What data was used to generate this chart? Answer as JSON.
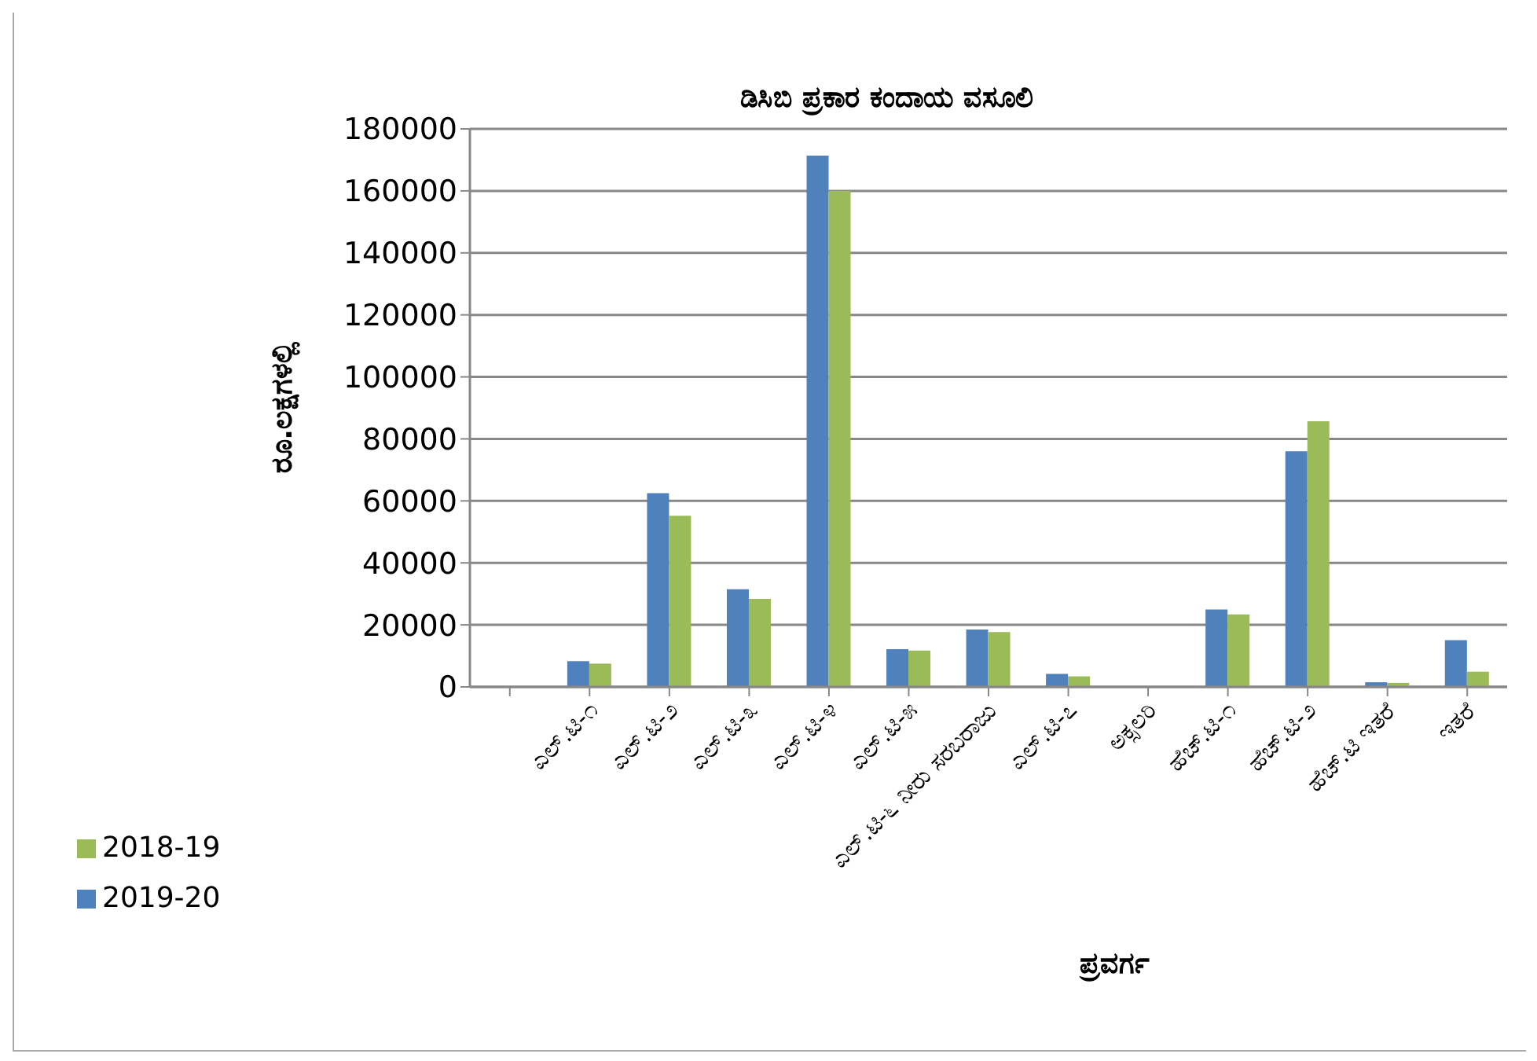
{
  "chart_data": {
    "type": "bar",
    "title": "ಡಿಸಿಬಿ ಪ್ರಕಾರ ಕಂದಾಯ ವಸೂಲಿ",
    "xlabel": "ಪ್ರವರ್ಗ",
    "ylabel": "ರೂ.ಲಕ್ಷಗಳಲ್ಲಿ",
    "categories": [
      null,
      "ಎಲ್.ಟಿ-೧",
      "ಎಲ್.ಟಿ-೨",
      "ಎಲ್.ಟಿ-೩",
      "ಎಲ್.ಟಿ-೪",
      "ಎಲ್.ಟಿ-೫",
      "ಎಲ್.ಟಿ-೬ ನೀರು ಸರಬರಾಜು",
      "ಎಲ್.ಟಿ-೭",
      "ಅಕ್ಸಲರಿ",
      "ಹೆಚ್.ಟಿ-೧",
      "ಹೆಚ್.ಟಿ-೨",
      "ಹೆಚ್.ಟಿ ಇತರೆ",
      "ಇತರೆ"
    ],
    "series": [
      {
        "name": "2019-20",
        "color": "#4f81bd",
        "values": [
          null,
          8300,
          62500,
          31500,
          171400,
          12200,
          18500,
          4200,
          0,
          25000,
          76000,
          1500,
          15100
        ]
      },
      {
        "name": "2018-19",
        "color": "#9bbb59",
        "values": [
          null,
          7500,
          55200,
          28400,
          160000,
          11700,
          17700,
          3400,
          0,
          23400,
          85700,
          1300,
          4900
        ]
      }
    ],
    "ylim": [
      0,
      180000
    ],
    "yticks": [
      0,
      20000,
      40000,
      60000,
      80000,
      100000,
      120000,
      140000,
      160000,
      180000
    ],
    "grid": "y",
    "legend": "bottom left"
  }
}
